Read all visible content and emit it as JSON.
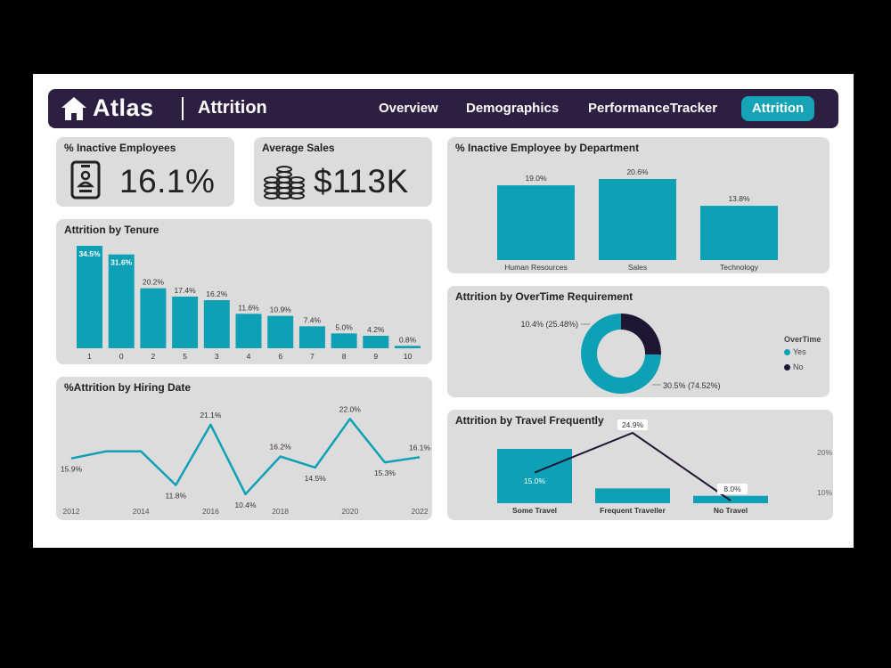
{
  "header": {
    "app_title": "Atlas",
    "page_name": "Attrition",
    "nav": [
      "Overview",
      "Demographics",
      "PerformanceTracker",
      "Attrition"
    ],
    "active_nav": "Attrition"
  },
  "colors": {
    "teal": "#0ea1b6",
    "navy": "#2c1f42",
    "card_bg": "#dcdcdc",
    "dark": "#1e1633"
  },
  "kpis": {
    "inactive": {
      "title": "% Inactive Employees",
      "value": "16.1%",
      "icon": "id-badge-icon"
    },
    "sales": {
      "title": "Average Sales",
      "value": "$113K",
      "icon": "coin-stack-icon"
    }
  },
  "chart_data": [
    {
      "id": "tenure",
      "type": "bar",
      "title": "Attrition by Tenure",
      "categories": [
        "1",
        "0",
        "2",
        "5",
        "3",
        "4",
        "6",
        "7",
        "8",
        "9",
        "10"
      ],
      "values": [
        34.5,
        31.6,
        20.2,
        17.4,
        16.2,
        11.6,
        10.9,
        7.4,
        5.0,
        4.2,
        0.8
      ],
      "labels": [
        "34.5%",
        "31.6%",
        "20.2%",
        "17.4%",
        "16.2%",
        "11.6%",
        "10.9%",
        "7.4%",
        "5.0%",
        "4.2%",
        "0.8%"
      ]
    },
    {
      "id": "hiring",
      "type": "line",
      "title": "%Attrition by Hiring Date",
      "x_ticks": [
        "2012",
        "2014",
        "2016",
        "2018",
        "2020",
        "2022"
      ],
      "x_range": [
        2012,
        2022
      ],
      "points": [
        {
          "x": 2012,
          "y": 15.9,
          "label": "15.9%"
        },
        {
          "x": 2013,
          "y": 17.0,
          "label": ""
        },
        {
          "x": 2014,
          "y": 17.0,
          "label": ""
        },
        {
          "x": 2015,
          "y": 11.8,
          "label": "11.8%"
        },
        {
          "x": 2016,
          "y": 21.1,
          "label": "21.1%"
        },
        {
          "x": 2017,
          "y": 10.4,
          "label": "10.4%"
        },
        {
          "x": 2018,
          "y": 16.2,
          "label": "16.2%"
        },
        {
          "x": 2019,
          "y": 14.5,
          "label": "14.5%"
        },
        {
          "x": 2020,
          "y": 22.0,
          "label": "22.0%"
        },
        {
          "x": 2021,
          "y": 15.3,
          "label": "15.3%"
        },
        {
          "x": 2022,
          "y": 16.1,
          "label": "16.1%"
        }
      ],
      "ylim": [
        9,
        23
      ]
    },
    {
      "id": "department",
      "type": "bar",
      "title": "% Inactive Employee by Department",
      "categories": [
        "Human Resources",
        "Sales",
        "Technology"
      ],
      "values": [
        19.0,
        20.6,
        13.8
      ],
      "labels": [
        "19.0%",
        "20.6%",
        "13.8%"
      ]
    },
    {
      "id": "overtime",
      "type": "pie",
      "title": "Attrition by OverTime Requirement",
      "legend_title": "OverTime",
      "series": [
        {
          "name": "Yes",
          "share": 74.52,
          "label": "30.5% (74.52%)",
          "color": "#0ea1b6"
        },
        {
          "name": "No",
          "share": 25.48,
          "label": "10.4% (25.48%)",
          "color": "#1e1633"
        }
      ]
    },
    {
      "id": "travel",
      "type": "bar",
      "title": "Attrition by Travel Frequently",
      "categories": [
        "Some Travel",
        "Frequent Traveller",
        "No Travel"
      ],
      "bar_values": [
        220,
        60,
        30
      ],
      "line_values": [
        15.0,
        24.9,
        8.0
      ],
      "line_labels": [
        "15.0%",
        "24.9%",
        "8.0%"
      ],
      "y2_ticks": [
        "20%",
        "10%"
      ],
      "y2_tick_values": [
        20,
        10
      ]
    }
  ]
}
